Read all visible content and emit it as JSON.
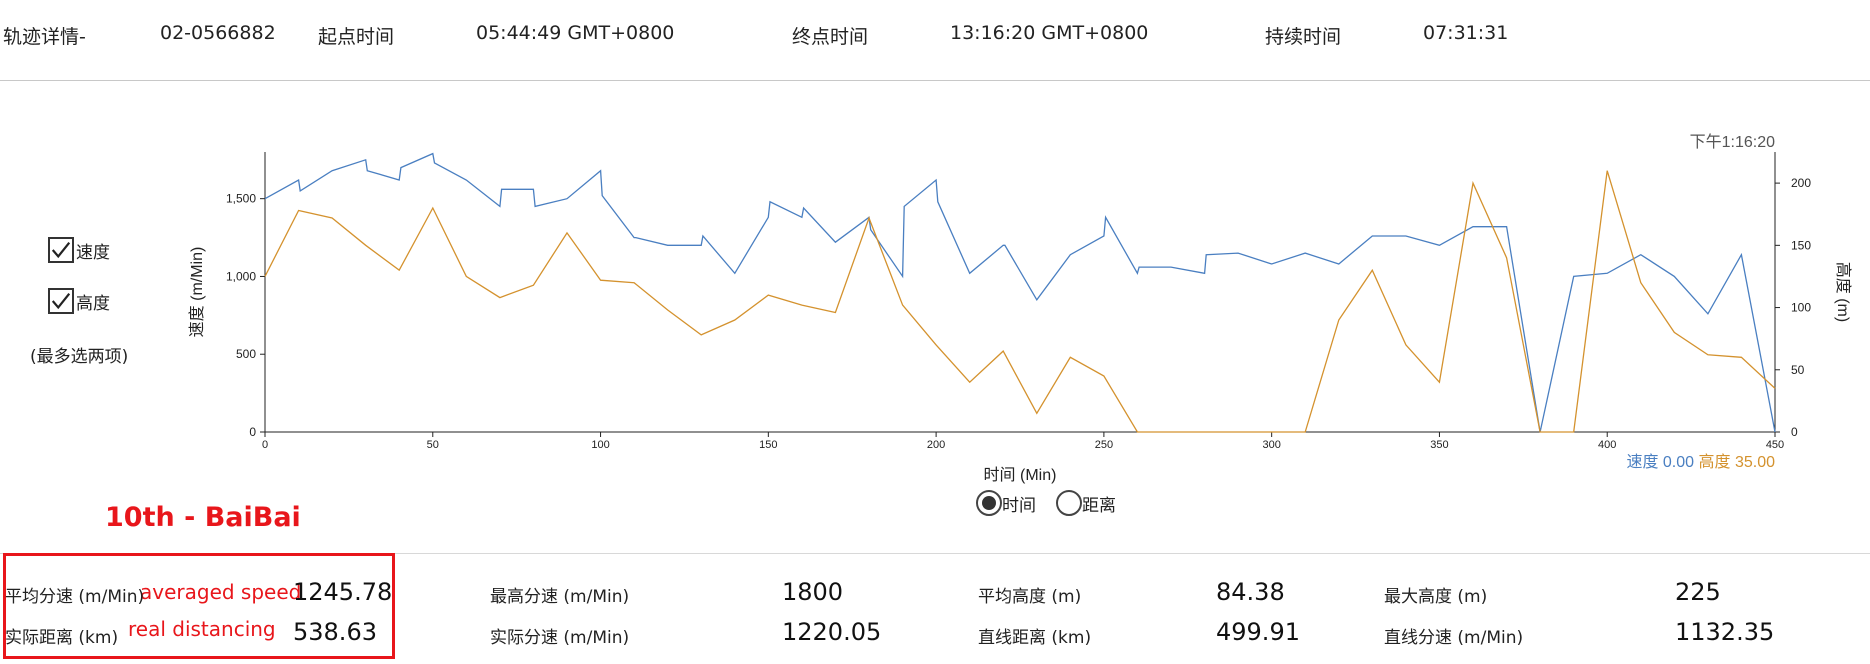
{
  "header": {
    "track_label": "轨迹详情-",
    "track_id": "02-0566882",
    "start_label": "起点时间",
    "start_value": "05:44:49 GMT+0800",
    "end_label": "终点时间",
    "end_value": "13:16:20 GMT+0800",
    "duration_label": "持续时间",
    "duration_value": "07:31:31"
  },
  "options": {
    "speed_label": "速度",
    "speed_checked": true,
    "height_label": "高度",
    "height_checked": true,
    "note": "(最多选两项)"
  },
  "chart_data": {
    "type": "line",
    "xlabel": "时间 (Min)",
    "ylabel": "速度 (m/Min)",
    "y2label": "高度 (m)",
    "xlim": [
      0,
      450
    ],
    "ylim": [
      0,
      1800
    ],
    "y2lim": [
      0,
      225
    ],
    "x_ticks": [
      "0",
      "50",
      "100",
      "150",
      "200",
      "250",
      "300",
      "350",
      "400",
      "450"
    ],
    "y_ticks": [
      "0",
      "500",
      "1,000",
      "1,500"
    ],
    "y2_ticks": [
      "0",
      "50",
      "100",
      "150",
      "200"
    ],
    "cursor_time": "下午1:16:20",
    "readout": {
      "speed_label": "速度",
      "speed_value": "0.00",
      "height_label": "高度",
      "height_value": "35.00"
    },
    "colors": {
      "speed": "#4a7fc1",
      "height": "#d4922e"
    },
    "series": [
      {
        "name": "速度",
        "axis": "left",
        "x": [
          0,
          10,
          10.5,
          20,
          30,
          30.5,
          40,
          40.5,
          50,
          50.5,
          60,
          70,
          70.5,
          80,
          80.5,
          90,
          100,
          100.5,
          110,
          110.5,
          120,
          130,
          130.5,
          140,
          150,
          150.5,
          160,
          160.5,
          170,
          180,
          180.5,
          190,
          190.5,
          200,
          200.5,
          210,
          220,
          220.5,
          230,
          240,
          250,
          250.5,
          260,
          260.5,
          270,
          280,
          280.5,
          290,
          300,
          310,
          320,
          330,
          330.5,
          340,
          350,
          360,
          370,
          380,
          390,
          400,
          410,
          420,
          430,
          440,
          450
        ],
        "y": [
          1500,
          1620,
          1550,
          1680,
          1750,
          1680,
          1620,
          1700,
          1790,
          1730,
          1620,
          1450,
          1560,
          1560,
          1450,
          1500,
          1680,
          1520,
          1250,
          1250,
          1200,
          1200,
          1260,
          1020,
          1380,
          1480,
          1380,
          1440,
          1220,
          1380,
          1300,
          1000,
          1450,
          1620,
          1480,
          1020,
          1200,
          1200,
          850,
          1140,
          1260,
          1380,
          1020,
          1060,
          1060,
          1020,
          1140,
          1150,
          1080,
          1150,
          1080,
          1260,
          1260,
          1260,
          1200,
          1320,
          1320,
          0,
          1000,
          1020,
          1140,
          1000,
          760,
          1140,
          0
        ]
      },
      {
        "name": "高度",
        "axis": "right",
        "x": [
          0,
          10,
          20,
          30,
          40,
          50,
          60,
          70,
          80,
          90,
          100,
          110,
          120,
          130,
          140,
          150,
          160,
          170,
          180,
          190,
          200,
          210,
          220,
          230,
          240,
          250,
          260,
          270,
          280,
          290,
          300,
          310,
          320,
          330,
          340,
          350,
          360,
          370,
          380,
          390,
          400,
          410,
          420,
          430,
          440,
          450
        ],
        "y": [
          125,
          178,
          172,
          150,
          130,
          180,
          125,
          108,
          118,
          160,
          122,
          120,
          98,
          78,
          90,
          110,
          102,
          96,
          172,
          102,
          70,
          40,
          65,
          15,
          60,
          45,
          0,
          0,
          0,
          0,
          0,
          0,
          90,
          130,
          70,
          40,
          200,
          140,
          0,
          0,
          210,
          120,
          80,
          62,
          60,
          35
        ]
      }
    ]
  },
  "axis_mode": {
    "time_label": "时间",
    "time_selected": true,
    "distance_label": "距离",
    "distance_selected": false
  },
  "annotation": {
    "title": "10th - BaiBai",
    "avg_speed_note": "averaged speed",
    "real_distance_note": "real distancing"
  },
  "stats": {
    "avg_speed_label": "平均分速 (m/Min)",
    "avg_speed_value": "1245.78",
    "real_distance_label": "实际距离 (km)",
    "real_distance_value": "538.63",
    "max_speed_label": "最高分速 (m/Min)",
    "max_speed_value": "1800",
    "real_speed_label": "实际分速 (m/Min)",
    "real_speed_value": "1220.05",
    "avg_height_label": "平均高度 (m)",
    "avg_height_value": "84.38",
    "line_distance_label": "直线距离 (km)",
    "line_distance_value": "499.91",
    "max_height_label": "最大高度 (m)",
    "max_height_value": "225",
    "line_speed_label": "直线分速 (m/Min)",
    "line_speed_value": "1132.35"
  }
}
